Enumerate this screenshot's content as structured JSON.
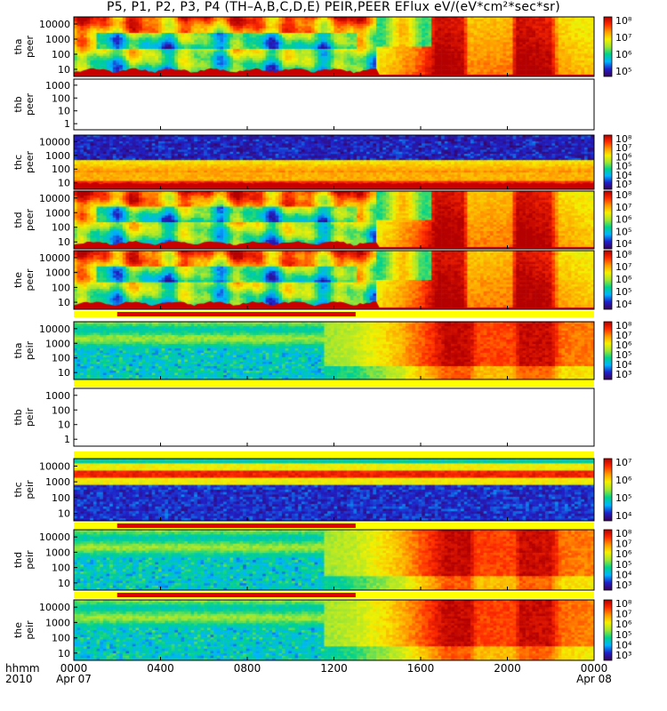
{
  "title": "P5, P1, P2, P3, P4 (TH–A,B,C,D,E) PEIR,PEER EFlux eV/(eV*cm²*sec*sr)",
  "colors": {
    "ramp": [
      "#3b0059",
      "#2020c8",
      "#00b4ff",
      "#00d28c",
      "#a0e632",
      "#f5f000",
      "#ff9a00",
      "#ff2a00",
      "#b40000"
    ],
    "empty_panel": "#ffffff",
    "low_energy_fill": "#c80000",
    "flag_red": "#e00000",
    "flag_yellow": "#ffff00"
  },
  "x_axis": {
    "row_label_top": "hhmm",
    "row_label_bottom": "2010",
    "ticks": [
      "0000",
      "0400",
      "0800",
      "1200",
      "1600",
      "2000",
      "0000"
    ],
    "tick_hours": [
      0,
      4,
      8,
      12,
      16,
      20,
      24
    ],
    "date_start": "Apr 07",
    "date_end": "Apr 08"
  },
  "chart_data": [
    {
      "type": "heatmap",
      "probe": "tha",
      "product": "peer",
      "ylabel": [
        "tha",
        "peer"
      ],
      "yscale": "log",
      "yticks": [
        "10",
        "100",
        "1000",
        "10000"
      ],
      "has_data": true,
      "colorbar": {
        "scale": "log",
        "ticks": [
          "10⁵",
          "10⁶",
          "10⁷",
          "10⁸"
        ]
      }
    },
    {
      "type": "heatmap",
      "probe": "thb",
      "product": "peer",
      "ylabel": [
        "thb",
        "peer"
      ],
      "yscale": "log",
      "yticks": [
        "1",
        "10",
        "100",
        "1000"
      ],
      "has_data": false
    },
    {
      "type": "heatmap",
      "probe": "thc",
      "product": "peer",
      "ylabel": [
        "thc",
        "peer"
      ],
      "yscale": "log",
      "yticks": [
        "10",
        "100",
        "1000",
        "10000"
      ],
      "has_data": true,
      "colorbar": {
        "scale": "log",
        "ticks": [
          "10³",
          "10⁴",
          "10⁵",
          "10⁶",
          "10⁷",
          "10⁸"
        ]
      }
    },
    {
      "type": "heatmap",
      "probe": "thd",
      "product": "peer",
      "ylabel": [
        "thd",
        "peer"
      ],
      "yscale": "log",
      "yticks": [
        "10",
        "100",
        "1000",
        "10000"
      ],
      "has_data": true,
      "colorbar": {
        "scale": "log",
        "ticks": [
          "10⁴",
          "10⁵",
          "10⁶",
          "10⁷",
          "10⁸"
        ]
      }
    },
    {
      "type": "heatmap",
      "probe": "the",
      "product": "peer",
      "ylabel": [
        "the",
        "peer"
      ],
      "yscale": "log",
      "yticks": [
        "10",
        "100",
        "1000",
        "10000"
      ],
      "has_data": true,
      "colorbar": {
        "scale": "log",
        "ticks": [
          "10⁴",
          "10⁵",
          "10⁶",
          "10⁷",
          "10⁸"
        ]
      }
    },
    {
      "type": "heatmap",
      "probe": "tha",
      "product": "peir",
      "ylabel": [
        "tha",
        "peir"
      ],
      "yscale": "log",
      "yticks": [
        "10",
        "100",
        "1000",
        "10000"
      ],
      "has_data": true,
      "colorbar": {
        "scale": "log",
        "ticks": [
          "10³",
          "10⁴",
          "10⁵",
          "10⁶",
          "10⁷",
          "10⁸"
        ]
      }
    },
    {
      "type": "heatmap",
      "probe": "thb",
      "product": "peir",
      "ylabel": [
        "thb",
        "peir"
      ],
      "yscale": "log",
      "yticks": [
        "1",
        "10",
        "100",
        "1000"
      ],
      "has_data": false
    },
    {
      "type": "heatmap",
      "probe": "thc",
      "product": "peir",
      "ylabel": [
        "thc",
        "peir"
      ],
      "yscale": "log",
      "yticks": [
        "10",
        "100",
        "1000",
        "10000"
      ],
      "has_data": true,
      "colorbar": {
        "scale": "log",
        "ticks": [
          "10⁴",
          "10⁵",
          "10⁶",
          "10⁷"
        ]
      }
    },
    {
      "type": "heatmap",
      "probe": "thd",
      "product": "peir",
      "ylabel": [
        "thd",
        "peir"
      ],
      "yscale": "log",
      "yticks": [
        "10",
        "100",
        "1000",
        "10000"
      ],
      "has_data": true,
      "colorbar": {
        "scale": "log",
        "ticks": [
          "10³",
          "10⁴",
          "10⁵",
          "10⁶",
          "10⁷",
          "10⁸"
        ]
      }
    },
    {
      "type": "heatmap",
      "probe": "the",
      "product": "peir",
      "ylabel": [
        "the",
        "peir"
      ],
      "yscale": "log",
      "yticks": [
        "10",
        "100",
        "1000",
        "10000"
      ],
      "has_data": true,
      "colorbar": {
        "scale": "log",
        "ticks": [
          "10³",
          "10⁴",
          "10⁵",
          "10⁶",
          "10⁷",
          "10⁸"
        ]
      }
    }
  ]
}
